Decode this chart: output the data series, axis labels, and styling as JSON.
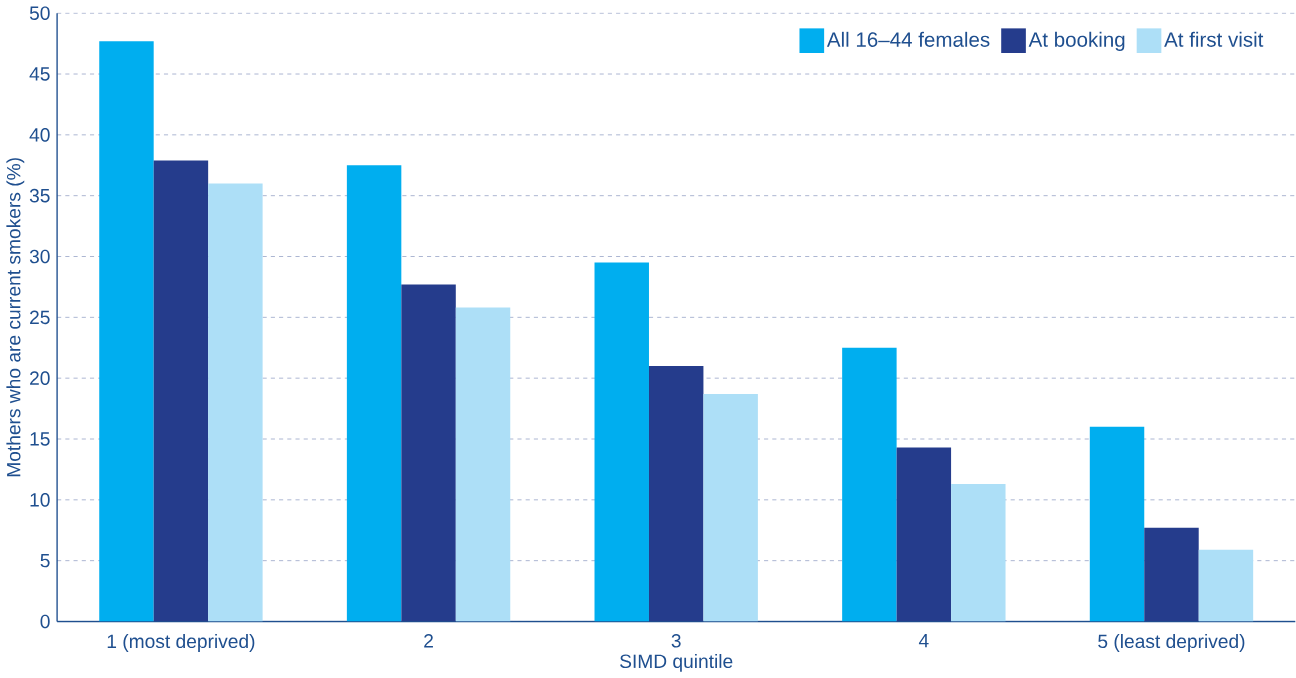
{
  "chart_data": {
    "type": "bar",
    "xlabel": "SIMD quintile",
    "ylabel": "Mothers who are current smokers (%)",
    "categories": [
      "1 (most deprived)",
      "2",
      "3",
      "4",
      "5 (least deprived)"
    ],
    "series": [
      {
        "name": "All 16–44 females",
        "color": "#00aeef",
        "values": [
          47.7,
          37.5,
          29.5,
          22.5,
          16.0
        ]
      },
      {
        "name": "At booking",
        "color": "#253c8c",
        "values": [
          37.9,
          27.7,
          21.0,
          14.3,
          7.7
        ]
      },
      {
        "name": "At first visit",
        "color": "#addff7",
        "values": [
          36.0,
          25.8,
          18.7,
          11.3,
          5.9
        ]
      }
    ],
    "ylim": [
      0,
      50
    ],
    "yticks": [
      0,
      5,
      10,
      15,
      20,
      25,
      30,
      35,
      40,
      45,
      50
    ],
    "grid": "y",
    "legend": "top right"
  }
}
